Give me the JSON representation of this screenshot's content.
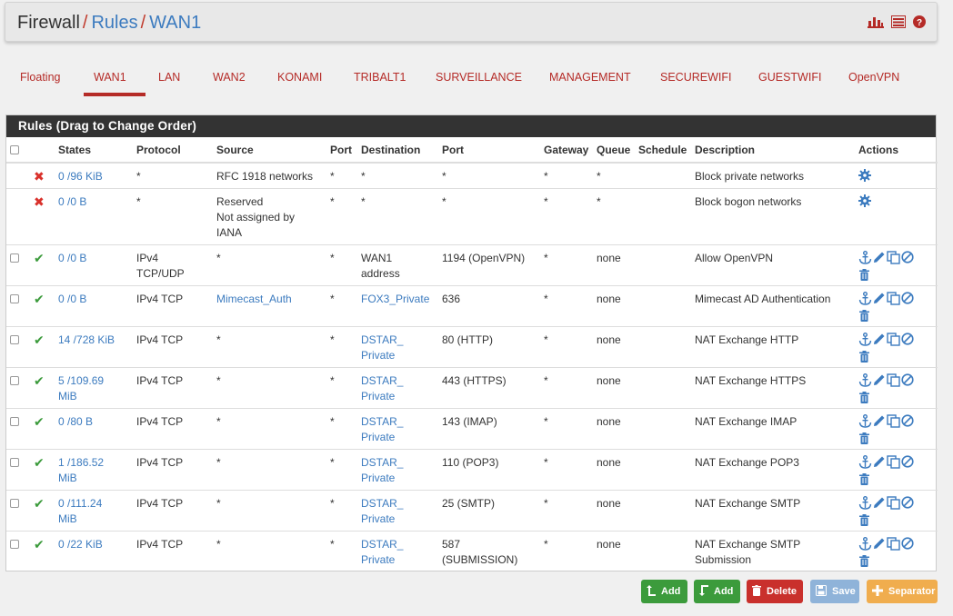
{
  "breadcrumb": {
    "root": "Firewall",
    "sep": "/",
    "level1": "Rules",
    "level2": "WAN1"
  },
  "header_icons": [
    "bar-chart-icon",
    "list-icon",
    "help-icon"
  ],
  "tabs": [
    "Floating",
    "WAN1",
    "LAN",
    "WAN2",
    "KONAMI",
    "TRIBALT1",
    "SURVEILLANCE",
    "MANAGEMENT",
    "SECUREWIFI",
    "GUESTWIFI",
    "OpenVPN"
  ],
  "active_tab": "WAN1",
  "panel_title": "Rules (Drag to Change Order)",
  "columns": {
    "states": "States",
    "protocol": "Protocol",
    "source": "Source",
    "port": "Port",
    "destination": "Destination",
    "dport": "Port",
    "gateway": "Gateway",
    "queue": "Queue",
    "schedule": "Schedule",
    "description": "Description",
    "actions": "Actions"
  },
  "rows": [
    {
      "status": "block",
      "states1": "0 /96 KiB",
      "states2": "",
      "protocol1": "*",
      "protocol2": "",
      "source1": "RFC 1918 networks",
      "source2": "",
      "source3": "",
      "port": "*",
      "dest1": "*",
      "dest2": "",
      "dport1": "*",
      "dport2": "",
      "gateway": "*",
      "queue": "*",
      "schedule": "",
      "desc1": "Block private networks",
      "desc2": ""
    },
    {
      "status": "block",
      "states1": "0 /0 B",
      "states2": "",
      "protocol1": "*",
      "protocol2": "",
      "source1": "Reserved",
      "source2": "Not assigned by",
      "source3": "IANA",
      "port": "*",
      "dest1": "*",
      "dest2": "",
      "dport1": "*",
      "dport2": "",
      "gateway": "*",
      "queue": "*",
      "schedule": "",
      "desc1": "Block bogon networks",
      "desc2": ""
    },
    {
      "status": "pass",
      "states1": "0 /0 B",
      "states2": "",
      "protocol1": "IPv4",
      "protocol2": "TCP/UDP",
      "source1": "*",
      "source2": "",
      "source3": "",
      "port": "*",
      "dest1": "WAN1",
      "dest2": "address",
      "dport1": "1194 (OpenVPN)",
      "dport2": "",
      "gateway": "*",
      "queue": "none",
      "schedule": "",
      "desc1": "Allow OpenVPN",
      "desc2": ""
    },
    {
      "status": "pass",
      "states1": "0 /0 B",
      "states2": "",
      "protocol1": "IPv4 TCP",
      "protocol2": "",
      "source1": "Mimecast_Auth",
      "source2": "",
      "source3": "",
      "port": "*",
      "dest1": "FOX3_Private",
      "dest2": "",
      "dport1": "636",
      "dport2": "",
      "gateway": "*",
      "queue": "none",
      "schedule": "",
      "desc1": "Mimecast AD Authentication",
      "desc2": ""
    },
    {
      "status": "pass",
      "states1": "14 /728 KiB",
      "states2": "",
      "protocol1": "IPv4 TCP",
      "protocol2": "",
      "source1": "*",
      "source2": "",
      "source3": "",
      "port": "*",
      "dest1": "DSTAR_",
      "dest2": "Private",
      "dport1": "80 (HTTP)",
      "dport2": "",
      "gateway": "*",
      "queue": "none",
      "schedule": "",
      "desc1": "NAT Exchange HTTP",
      "desc2": ""
    },
    {
      "status": "pass",
      "states1": "5 /109.69",
      "states2": "MiB",
      "protocol1": "IPv4 TCP",
      "protocol2": "",
      "source1": "*",
      "source2": "",
      "source3": "",
      "port": "*",
      "dest1": "DSTAR_",
      "dest2": "Private",
      "dport1": "443 (HTTPS)",
      "dport2": "",
      "gateway": "*",
      "queue": "none",
      "schedule": "",
      "desc1": "NAT Exchange HTTPS",
      "desc2": ""
    },
    {
      "status": "pass",
      "states1": "0 /80 B",
      "states2": "",
      "protocol1": "IPv4 TCP",
      "protocol2": "",
      "source1": "*",
      "source2": "",
      "source3": "",
      "port": "*",
      "dest1": "DSTAR_",
      "dest2": "Private",
      "dport1": "143 (IMAP)",
      "dport2": "",
      "gateway": "*",
      "queue": "none",
      "schedule": "",
      "desc1": "NAT Exchange IMAP",
      "desc2": ""
    },
    {
      "status": "pass",
      "states1": "1 /186.52",
      "states2": "MiB",
      "protocol1": "IPv4 TCP",
      "protocol2": "",
      "source1": "*",
      "source2": "",
      "source3": "",
      "port": "*",
      "dest1": "DSTAR_",
      "dest2": "Private",
      "dport1": "110 (POP3)",
      "dport2": "",
      "gateway": "*",
      "queue": "none",
      "schedule": "",
      "desc1": "NAT Exchange POP3",
      "desc2": ""
    },
    {
      "status": "pass",
      "states1": "0 /111.24",
      "states2": "MiB",
      "protocol1": "IPv4 TCP",
      "protocol2": "",
      "source1": "*",
      "source2": "",
      "source3": "",
      "port": "*",
      "dest1": "DSTAR_",
      "dest2": "Private",
      "dport1": "25 (SMTP)",
      "dport2": "",
      "gateway": "*",
      "queue": "none",
      "schedule": "",
      "desc1": "NAT Exchange SMTP",
      "desc2": ""
    },
    {
      "status": "pass",
      "states1": "0 /22 KiB",
      "states2": "",
      "protocol1": "IPv4 TCP",
      "protocol2": "",
      "source1": "*",
      "source2": "",
      "source3": "",
      "port": "*",
      "dest1": "DSTAR_",
      "dest2": "Private",
      "dport1": "587",
      "dport2": "(SUBMISSION)",
      "gateway": "*",
      "queue": "none",
      "schedule": "",
      "desc1": "NAT Exchange SMTP",
      "desc2": "Submission"
    }
  ],
  "buttons": {
    "add_top": "Add",
    "add_bottom": "Add",
    "delete": "Delete",
    "save": "Save",
    "separator": "Separator"
  },
  "colors": {
    "accent_red": "#b52b27",
    "link_blue": "#3c7bbf",
    "pass_green": "#3c9b3c",
    "block_red": "#d9312b",
    "btn_green": "#3c9b3c",
    "btn_red": "#c9302c",
    "btn_save": "#8fb3d9",
    "btn_orange": "#f0ad4e"
  }
}
